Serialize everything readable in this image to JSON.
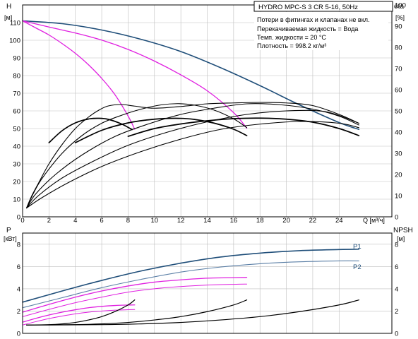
{
  "colors": {
    "axis": "#000000",
    "grid": "#bfbfbf",
    "black_curve": "#000000",
    "magenta_curve": "#e020e0",
    "blue_curve": "#1f4e79",
    "blue_light_curve": "#5b7fa6",
    "text": "#000000"
  },
  "header": {
    "model": "HYDRO MPC-S 3 CR 5-16, 50Hz",
    "notes": [
      "Потери в фитингах и клапанах не вкл.",
      "Перекачиваемая жидкость = Вода",
      "Темп. жидкости = 20 °C",
      "Плотность = 998.2 кг/м³"
    ]
  },
  "chart_data": [
    {
      "type": "line",
      "panel": "upper",
      "ylabel_left": "H",
      "yunit_left": "[м]",
      "ylabel_right": "eta",
      "yunit_right": "[%]",
      "xlabel": "Q [м³/ч]",
      "xlim": [
        0,
        28
      ],
      "ylim_left": [
        0,
        120
      ],
      "ylim_right": [
        0,
        100
      ],
      "xticks": [
        0,
        2,
        4,
        6,
        8,
        10,
        12,
        14,
        16,
        18,
        20,
        22,
        24
      ],
      "yticks_left": [
        0,
        10,
        20,
        30,
        40,
        50,
        60,
        70,
        80,
        90,
        100,
        110
      ],
      "yticks_right": [
        0,
        10,
        20,
        30,
        40,
        50,
        60,
        70,
        80,
        90,
        100
      ],
      "grid": true,
      "series": [
        {
          "role": "head",
          "color_key": "blue_curve",
          "width": 1.6,
          "x": [
            0,
            3,
            6,
            9,
            12,
            15,
            18,
            21,
            24,
            25.5
          ],
          "y": [
            111,
            109.4,
            105.8,
            100.5,
            93.6,
            84.5,
            74.3,
            63.4,
            53.4,
            49.5
          ]
        },
        {
          "role": "head",
          "color_key": "magenta_curve",
          "width": 1.3,
          "x": [
            0,
            2,
            4,
            6,
            8,
            10,
            12,
            14,
            16,
            17
          ],
          "y": [
            111,
            107.5,
            104.1,
            100.1,
            94.8,
            88.2,
            80.4,
            71.4,
            59.0,
            50.2
          ]
        },
        {
          "role": "head",
          "color_key": "magenta_curve",
          "width": 1.3,
          "x": [
            0,
            1,
            2,
            3,
            4,
            5,
            6,
            7,
            8,
            8.5
          ],
          "y": [
            111,
            107.0,
            103.0,
            98.1,
            92.6,
            86.1,
            78.4,
            69.2,
            57.1,
            49.6
          ]
        },
        {
          "role": "eta_envelope",
          "color_key": "black_curve",
          "width": 1.1,
          "x": [
            0.3,
            0.7,
            1.2,
            2,
            3,
            4,
            5,
            5.8,
            6.5,
            7.5,
            8.5,
            10,
            12,
            14,
            16,
            18,
            20,
            22,
            24,
            25.5
          ],
          "y": [
            5,
            12,
            19,
            30,
            41,
            50,
            56.5,
            60.5,
            62.8,
            63.6,
            62.7,
            61.5,
            62.5,
            64,
            64.5,
            64.8,
            64.5,
            63,
            58,
            53
          ]
        },
        {
          "role": "eta_envelope",
          "color_key": "black_curve",
          "width": 1.1,
          "x": [
            0.3,
            0.8,
            1.5,
            3,
            4.5,
            6,
            7.5,
            9,
            10.5,
            11.8,
            13,
            14.5,
            16,
            17
          ],
          "y": [
            5,
            13,
            22,
            36,
            46,
            53,
            57.5,
            61,
            63.4,
            64.1,
            63.3,
            60.5,
            55.5,
            50.5
          ]
        },
        {
          "role": "eta_envelope",
          "color_key": "black_curve",
          "width": 1.1,
          "x": [
            0.3,
            1,
            2.5,
            4.5,
            7,
            9.5,
            12,
            14.5,
            17,
            19.5,
            22,
            24,
            25.5
          ],
          "y": [
            5,
            13,
            24,
            35,
            45.5,
            52.5,
            58,
            61.5,
            64,
            63.5,
            61,
            57,
            52
          ]
        },
        {
          "role": "eta_envelope",
          "color_key": "black_curve",
          "width": 1.1,
          "x": [
            0.3,
            1.2,
            3,
            5.5,
            8,
            11,
            14,
            17,
            20,
            23,
            25.5
          ],
          "y": [
            5,
            12,
            22,
            32,
            40.5,
            48,
            53.8,
            58,
            60,
            59.5,
            53
          ]
        },
        {
          "role": "eta_envelope",
          "color_key": "black_curve",
          "width": 1.1,
          "x": [
            0.3,
            1.5,
            3.5,
            6,
            9,
            12,
            15,
            18,
            21,
            24,
            25.5
          ],
          "y": [
            5,
            11,
            19.5,
            28.5,
            37,
            44,
            49.5,
            52.5,
            54,
            53,
            50.5
          ]
        },
        {
          "role": "eta",
          "color_key": "black_curve",
          "width": 1.7,
          "x": [
            2,
            3,
            4,
            5,
            5.8,
            6.5,
            7.5,
            8.3
          ],
          "y": [
            42,
            48.8,
            53.2,
            55.4,
            55.8,
            55.2,
            52.6,
            49.4
          ]
        },
        {
          "role": "eta",
          "color_key": "black_curve",
          "width": 1.7,
          "x": [
            4,
            6,
            8,
            10,
            11.6,
            13,
            14.5,
            16,
            17
          ],
          "y": [
            42,
            49,
            53.2,
            55.3,
            55.8,
            55.2,
            53.1,
            49.6,
            46
          ]
        },
        {
          "role": "eta",
          "color_key": "black_curve",
          "width": 1.7,
          "x": [
            8,
            10,
            12,
            14,
            16,
            18,
            20,
            22,
            24,
            25.5
          ],
          "y": [
            45.6,
            50,
            52.6,
            54.4,
            55.6,
            55.9,
            55.3,
            53.6,
            50,
            46
          ]
        }
      ]
    },
    {
      "type": "line",
      "panel": "lower",
      "ylabel_left": "P",
      "yunit_left": "[кВт]",
      "ylabel_right": "NPSH",
      "yunit_right": "[м]",
      "xlim": [
        0,
        28
      ],
      "ylim_left": [
        0,
        9
      ],
      "ylim_right": [
        0,
        9
      ],
      "xticks": [
        0,
        2,
        4,
        6,
        8,
        10,
        12,
        14,
        16,
        18,
        20,
        22,
        24
      ],
      "yticks_left": [
        0,
        2,
        4,
        6,
        8
      ],
      "yticks_right": [
        0,
        2,
        4,
        6,
        8
      ],
      "grid": true,
      "series": [
        {
          "name": "P1",
          "color_key": "blue_curve",
          "width": 1.6,
          "x": [
            0,
            3,
            6,
            9,
            12,
            15,
            18,
            21,
            24,
            25.5
          ],
          "y": [
            2.8,
            3.8,
            4.75,
            5.6,
            6.3,
            6.85,
            7.2,
            7.42,
            7.52,
            7.55
          ]
        },
        {
          "name": "P2",
          "color_key": "blue_light_curve",
          "width": 1.1,
          "x": [
            0,
            3,
            6,
            9,
            12,
            15,
            18,
            21,
            24,
            25.5
          ],
          "y": [
            2.3,
            3.2,
            4.1,
            4.85,
            5.5,
            5.95,
            6.25,
            6.42,
            6.5,
            6.5
          ]
        },
        {
          "role": "P",
          "color_key": "magenta_curve",
          "width": 1.3,
          "x": [
            0,
            2,
            4,
            6,
            8,
            10,
            12,
            14,
            16,
            17
          ],
          "y": [
            1.9,
            2.6,
            3.25,
            3.8,
            4.25,
            4.6,
            4.8,
            4.95,
            5.0,
            5.02
          ]
        },
        {
          "role": "P",
          "color_key": "magenta_curve",
          "width": 1.0,
          "x": [
            0,
            2,
            4,
            6,
            8,
            10,
            12,
            14,
            16,
            17
          ],
          "y": [
            1.5,
            2.15,
            2.75,
            3.25,
            3.7,
            4.0,
            4.2,
            4.33,
            4.4,
            4.42
          ]
        },
        {
          "role": "P",
          "color_key": "magenta_curve",
          "width": 1.3,
          "x": [
            0,
            1,
            2,
            3,
            4,
            5,
            6,
            7,
            8,
            8.5
          ],
          "y": [
            1.0,
            1.35,
            1.65,
            1.9,
            2.12,
            2.3,
            2.42,
            2.5,
            2.54,
            2.55
          ]
        },
        {
          "role": "P",
          "color_key": "magenta_curve",
          "width": 1.0,
          "x": [
            0,
            1,
            2,
            3,
            4,
            5,
            6,
            7,
            8,
            8.5
          ],
          "y": [
            0.75,
            1.05,
            1.32,
            1.55,
            1.75,
            1.9,
            2.0,
            2.08,
            2.12,
            2.14
          ]
        },
        {
          "role": "NPSH",
          "color_key": "black_curve",
          "width": 1.2,
          "x": [
            0.3,
            2,
            3,
            4,
            5,
            6,
            7,
            8,
            8.5
          ],
          "y": [
            0.75,
            0.78,
            0.85,
            0.98,
            1.2,
            1.5,
            1.95,
            2.55,
            3.0
          ]
        },
        {
          "role": "NPSH",
          "color_key": "black_curve",
          "width": 1.2,
          "x": [
            0.3,
            4,
            6,
            8,
            10,
            12,
            14,
            16,
            17
          ],
          "y": [
            0.75,
            0.78,
            0.85,
            0.98,
            1.2,
            1.5,
            1.95,
            2.55,
            3.0
          ]
        },
        {
          "role": "NPSH",
          "color_key": "black_curve",
          "width": 1.2,
          "x": [
            0.3,
            6,
            9,
            12,
            15,
            18,
            21,
            24,
            25.5
          ],
          "y": [
            0.75,
            0.78,
            0.85,
            0.98,
            1.2,
            1.5,
            1.95,
            2.55,
            3.0
          ]
        }
      ]
    }
  ]
}
